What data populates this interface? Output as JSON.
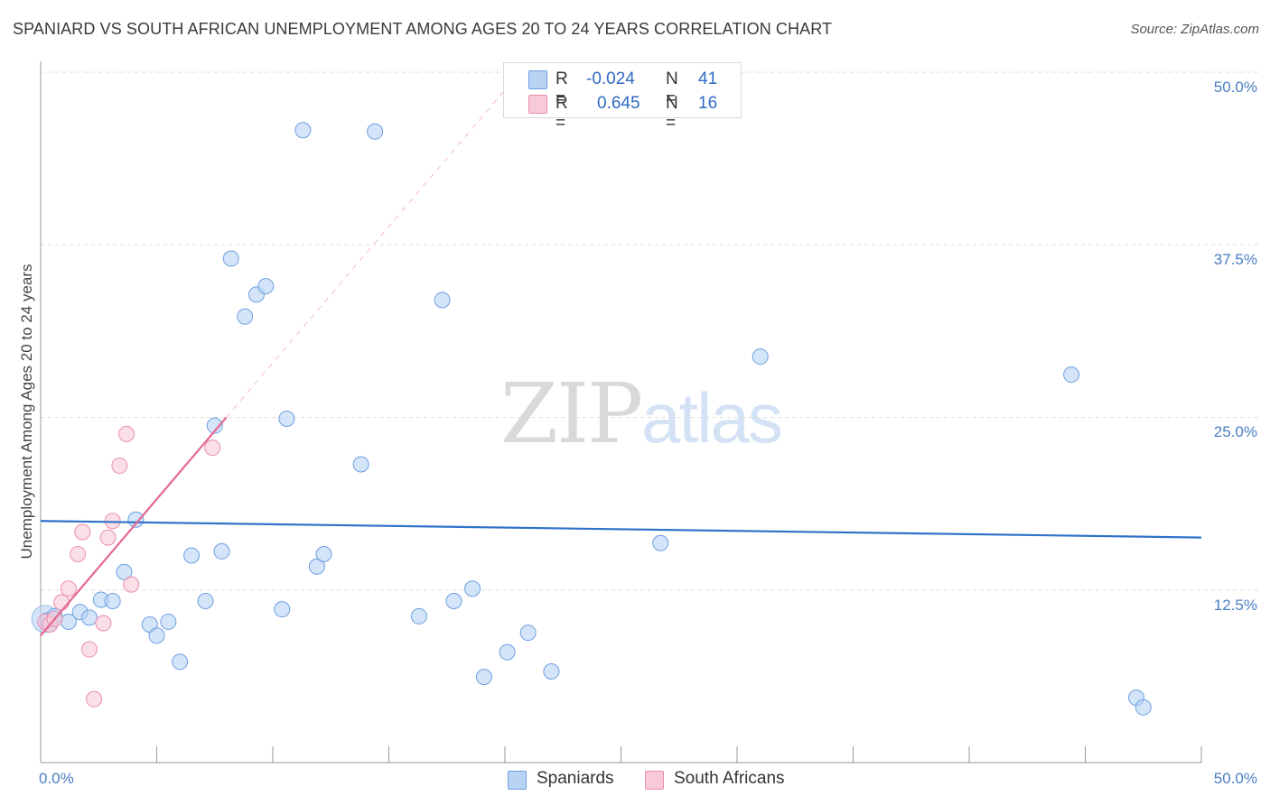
{
  "title": "SPANIARD VS SOUTH AFRICAN UNEMPLOYMENT AMONG AGES 20 TO 24 YEARS CORRELATION CHART",
  "source": "Source: ZipAtlas.com",
  "watermark": {
    "zip": "ZIP",
    "atlas": "atlas"
  },
  "legend": {
    "blue": {
      "r_label": "R =",
      "r_value": "-0.024",
      "n_label": "N =",
      "n_value": "41"
    },
    "pink": {
      "r_label": "R =",
      "r_value": "0.645",
      "n_label": "N =",
      "n_value": "16"
    }
  },
  "colors": {
    "blue_fill": "#b9d3f5",
    "blue_stroke": "#6e9fe0",
    "blue_line": "#2f72c9",
    "pink_fill": "#f8c9d8",
    "pink_stroke": "#e98fb0",
    "pink_line": "#e4688f",
    "tick_text": "#4a7ec4",
    "grid": "#dddddd"
  },
  "chart_data": {
    "type": "scatter",
    "title": "SPANIARD VS SOUTH AFRICAN UNEMPLOYMENT AMONG AGES 20 TO 24 YEARS CORRELATION CHART",
    "xlabel": "",
    "ylabel": "Unemployment Among Ages 20 to 24 years",
    "xlim": [
      0,
      50
    ],
    "ylim": [
      0,
      50
    ],
    "x_tick_labels": [
      "0.0%",
      "50.0%"
    ],
    "y_ticks": [
      12.5,
      25.0,
      37.5,
      50.0
    ],
    "y_tick_labels": [
      "12.5%",
      "25.0%",
      "37.5%",
      "50.0%"
    ],
    "series": [
      {
        "name": "Spaniards",
        "color": "#b9d3f5",
        "r": -0.024,
        "n": 41,
        "points": [
          [
            0.3,
            10.3
          ],
          [
            0.6,
            10.6
          ],
          [
            1.2,
            10.2
          ],
          [
            1.7,
            10.9
          ],
          [
            2.1,
            10.5
          ],
          [
            2.6,
            11.8
          ],
          [
            3.1,
            11.7
          ],
          [
            3.6,
            13.8
          ],
          [
            4.1,
            17.6
          ],
          [
            4.7,
            10.0
          ],
          [
            5.0,
            9.2
          ],
          [
            5.5,
            10.2
          ],
          [
            6.0,
            7.3
          ],
          [
            6.5,
            15.0
          ],
          [
            7.1,
            11.7
          ],
          [
            7.5,
            24.4
          ],
          [
            7.8,
            15.3
          ],
          [
            8.2,
            36.5
          ],
          [
            8.8,
            32.3
          ],
          [
            9.3,
            33.9
          ],
          [
            9.7,
            34.5
          ],
          [
            10.4,
            11.1
          ],
          [
            10.6,
            24.9
          ],
          [
            11.3,
            45.8
          ],
          [
            11.9,
            14.2
          ],
          [
            12.2,
            15.1
          ],
          [
            13.8,
            21.6
          ],
          [
            14.4,
            45.7
          ],
          [
            16.3,
            10.6
          ],
          [
            17.3,
            33.5
          ],
          [
            17.8,
            11.7
          ],
          [
            18.6,
            12.6
          ],
          [
            19.1,
            6.2
          ],
          [
            20.1,
            8.0
          ],
          [
            21.0,
            9.4
          ],
          [
            22.0,
            6.6
          ],
          [
            26.7,
            15.9
          ],
          [
            31.0,
            29.4
          ],
          [
            44.4,
            28.1
          ],
          [
            47.2,
            4.7
          ],
          [
            47.5,
            4.0
          ]
        ]
      },
      {
        "name": "South Africans",
        "color": "#f8c9d8",
        "r": 0.645,
        "n": 16,
        "points": [
          [
            0.2,
            10.2
          ],
          [
            0.4,
            10.0
          ],
          [
            0.6,
            10.4
          ],
          [
            0.9,
            11.6
          ],
          [
            1.2,
            12.6
          ],
          [
            1.6,
            15.1
          ],
          [
            1.8,
            16.7
          ],
          [
            2.1,
            8.2
          ],
          [
            2.3,
            4.6
          ],
          [
            2.7,
            10.1
          ],
          [
            2.9,
            16.3
          ],
          [
            3.1,
            17.5
          ],
          [
            3.4,
            21.5
          ],
          [
            3.7,
            23.8
          ],
          [
            3.9,
            12.9
          ],
          [
            7.4,
            22.8
          ]
        ]
      }
    ],
    "trend_lines": [
      {
        "series": "Spaniards",
        "x": [
          0,
          50
        ],
        "y": [
          17.5,
          16.3
        ],
        "style": "solid"
      },
      {
        "series": "South Africans",
        "x": [
          0,
          8.0
        ],
        "y": [
          9.2,
          25.0
        ],
        "style": "solid"
      },
      {
        "series": "South Africans",
        "x": [
          8.0,
          20.2
        ],
        "y": [
          25.0,
          49.1
        ],
        "style": "dashed"
      }
    ],
    "legend_position": "top-center"
  }
}
